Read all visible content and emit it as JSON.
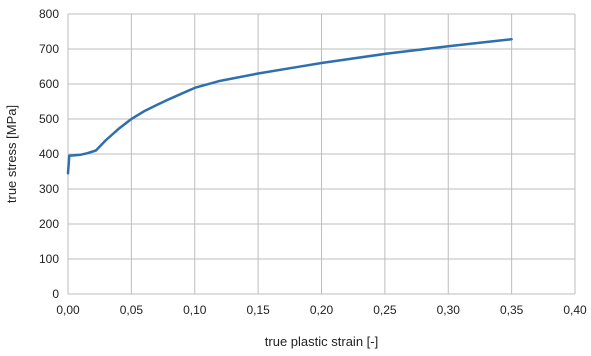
{
  "chart_data": {
    "type": "line",
    "xlabel": "true plastic strain [-]",
    "ylabel": "true stress [MPa]",
    "xlim": [
      0.0,
      0.4
    ],
    "ylim": [
      0,
      800
    ],
    "x_ticks": [
      "0,00",
      "0,05",
      "0,10",
      "0,15",
      "0,20",
      "0,25",
      "0,30",
      "0,35",
      "0,40"
    ],
    "y_ticks": [
      "0",
      "100",
      "200",
      "300",
      "400",
      "500",
      "600",
      "700",
      "800"
    ],
    "grid": true,
    "legend": "none",
    "series": [
      {
        "color": "#2e6fae",
        "points": [
          [
            0.0,
            345
          ],
          [
            0.001,
            395
          ],
          [
            0.01,
            398
          ],
          [
            0.015,
            402
          ],
          [
            0.022,
            410
          ],
          [
            0.03,
            440
          ],
          [
            0.04,
            472
          ],
          [
            0.05,
            500
          ],
          [
            0.06,
            522
          ],
          [
            0.07,
            540
          ],
          [
            0.08,
            557
          ],
          [
            0.09,
            573
          ],
          [
            0.1,
            589
          ],
          [
            0.12,
            609
          ],
          [
            0.15,
            630
          ],
          [
            0.18,
            648
          ],
          [
            0.2,
            660
          ],
          [
            0.25,
            686
          ],
          [
            0.3,
            708
          ],
          [
            0.35,
            728
          ]
        ]
      }
    ]
  }
}
